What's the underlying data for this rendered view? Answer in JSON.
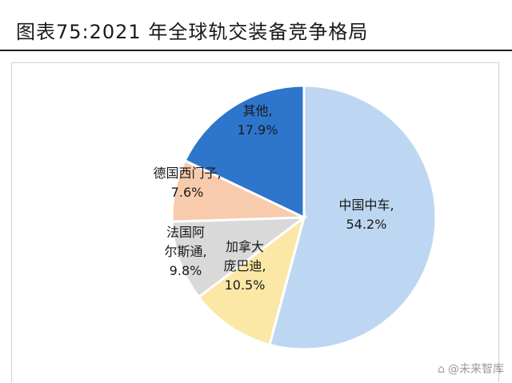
{
  "title": "图表75:2021 年全球轨交装备竞争格局",
  "watermark": "@未来智库",
  "chart_data": {
    "type": "pie",
    "title": "",
    "slices": [
      {
        "label": "中国中车,",
        "value": 54.2,
        "display": "54.2%",
        "color": "#bdd7f2"
      },
      {
        "label": "加拿大庞巴迪,",
        "value": 10.5,
        "display": "10.5%",
        "color": "#fbe7a6"
      },
      {
        "label": "法国阿尔斯通,",
        "value": 9.8,
        "display": "9.8%",
        "color": "#d9d9d9"
      },
      {
        "label": "德国西门子,",
        "value": 7.6,
        "display": "7.6%",
        "color": "#f8cbad"
      },
      {
        "label": "其他,",
        "value": 17.9,
        "display": "17.9%",
        "color": "#2e75cc"
      }
    ],
    "start_angle_deg": 0,
    "direction": "clockwise",
    "legend": "none"
  }
}
